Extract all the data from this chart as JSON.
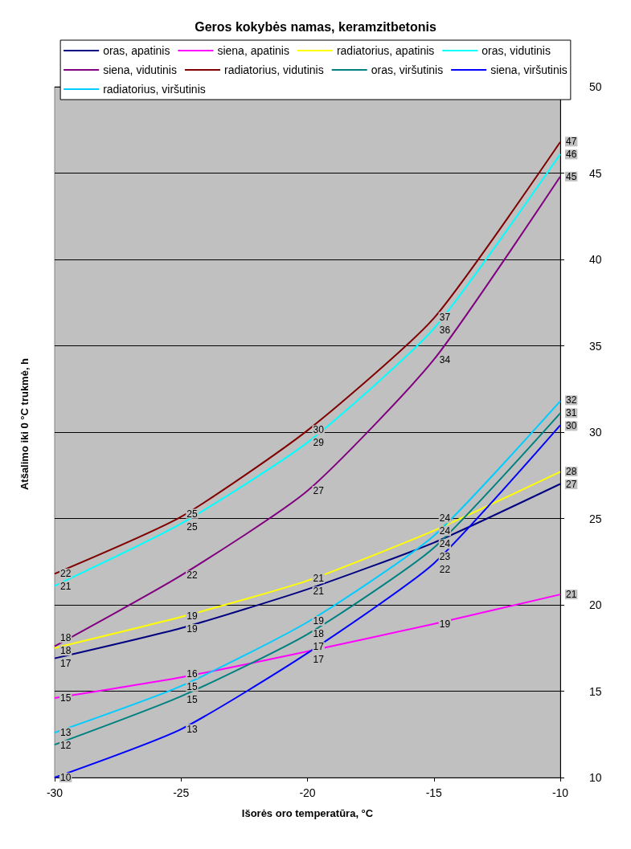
{
  "chart_data": {
    "type": "line",
    "title": "Geros kokybės namas, keramzitbetonis",
    "xlabel": "Išorės oro temperatūra, °C",
    "ylabel": "Atšalimo iki 0 °C trukmė, h",
    "xlim": [
      -30,
      -10
    ],
    "xticks": [
      -30,
      -25,
      -20,
      -15,
      -10
    ],
    "ylim": [
      10,
      50
    ],
    "yticks": [
      10,
      15,
      20,
      25,
      30,
      35,
      40,
      45,
      50
    ],
    "grid": "y",
    "legend": "top",
    "marker": "none",
    "line_style": "solid",
    "x": [
      -30,
      -25,
      -20,
      -15,
      -10
    ],
    "series": [
      {
        "name": "oras, apatinis",
        "color": "#000080",
        "values": [
          16.9,
          18.65,
          20.9,
          23.6,
          27.0
        ],
        "value_labels": [
          "17",
          "19",
          "21",
          "24",
          "27"
        ]
      },
      {
        "name": "siena, apatinis",
        "color": "#ff00ff",
        "values": [
          14.6,
          15.8,
          17.3,
          18.9,
          20.6
        ],
        "value_labels": [
          "15",
          "16",
          "17",
          "19",
          "21"
        ]
      },
      {
        "name": "radiatorius, apatinis",
        "color": "#ffff00",
        "values": [
          17.5,
          19.3,
          21.4,
          24.3,
          27.7
        ],
        "value_labels": [
          "18",
          "19",
          "21",
          "24",
          "28"
        ]
      },
      {
        "name": "oras, vidutinis",
        "color": "#00ffff",
        "values": [
          21.1,
          24.7,
          29.4,
          36.0,
          46.1
        ],
        "value_labels": [
          "21",
          "25",
          "29",
          "36",
          "46"
        ]
      },
      {
        "name": "siena, vidutinis",
        "color": "#800080",
        "values": [
          17.6,
          21.7,
          26.6,
          34.2,
          44.8
        ],
        "value_labels": [
          "18",
          "22",
          "27",
          "34",
          "45"
        ]
      },
      {
        "name": "radiatorius, vidutinis",
        "color": "#800000",
        "values": [
          21.8,
          25.1,
          30.1,
          36.6,
          46.8
        ],
        "value_labels": [
          "22",
          "25",
          "30",
          "37",
          "47"
        ]
      },
      {
        "name": "oras, viršutinis",
        "color": "#008080",
        "values": [
          11.9,
          14.7,
          18.3,
          23.3,
          31.1
        ],
        "value_labels": [
          "12",
          "15",
          "18",
          "23",
          "31"
        ]
      },
      {
        "name": "siena, viršutinis",
        "color": "#0000ff",
        "values": [
          10.0,
          12.8,
          17.2,
          22.4,
          30.4
        ],
        "value_labels": [
          "10",
          "13",
          "17",
          "22",
          "30"
        ]
      },
      {
        "name": "radiatorius, viršutinis",
        "color": "#00ccff",
        "values": [
          12.6,
          15.3,
          19.0,
          24.0,
          31.8
        ],
        "value_labels": [
          "13",
          "15",
          "19",
          "24",
          "32"
        ]
      }
    ]
  }
}
